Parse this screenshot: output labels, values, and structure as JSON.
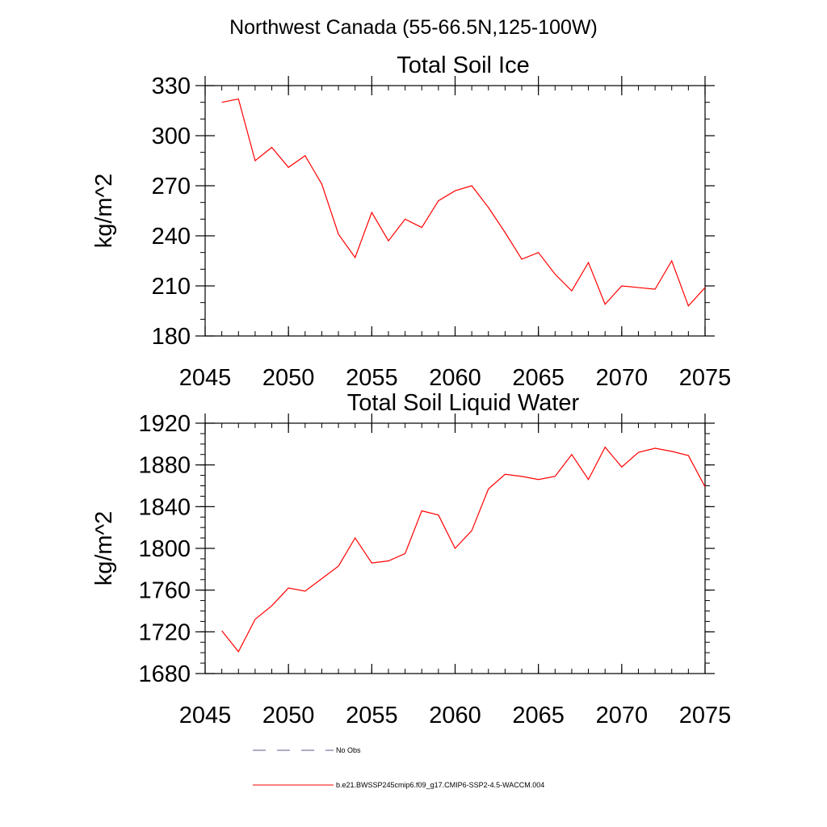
{
  "figure": {
    "title": "Northwest Canada (55-66.5N,125-100W)"
  },
  "chart_data": [
    {
      "type": "line",
      "title": "Total Soil Ice",
      "xlabel": "",
      "ylabel": "kg/m^2",
      "xlim": [
        2045,
        2075
      ],
      "ylim": [
        180,
        330
      ],
      "xticks": [
        2045,
        2050,
        2055,
        2060,
        2065,
        2070,
        2075
      ],
      "yticks": [
        180,
        210,
        240,
        270,
        300,
        330
      ],
      "x_minor_step": 1,
      "y_minor_step": 10,
      "grid": false,
      "series": [
        {
          "name": "b.e21.BWSSP245cmip6.f09_g17.CMIP6-SSP2-4.5-WACCM.004",
          "color": "#ff0000",
          "x": [
            2046,
            2047,
            2048,
            2049,
            2050,
            2051,
            2052,
            2053,
            2054,
            2055,
            2056,
            2057,
            2058,
            2059,
            2060,
            2061,
            2062,
            2063,
            2064,
            2065,
            2066,
            2067,
            2068,
            2069,
            2070,
            2071,
            2072,
            2073,
            2074,
            2075
          ],
          "y": [
            320,
            322,
            285,
            293,
            281,
            288,
            271,
            241,
            227,
            254,
            237,
            250,
            245,
            261,
            267,
            270,
            257,
            242,
            226,
            230,
            217,
            207,
            224,
            199,
            210,
            209,
            208,
            225,
            198,
            209
          ]
        }
      ]
    },
    {
      "type": "line",
      "title": "Total Soil Liquid Water",
      "xlabel": "",
      "ylabel": "kg/m^2",
      "xlim": [
        2045,
        2075
      ],
      "ylim": [
        1680,
        1920
      ],
      "xticks": [
        2045,
        2050,
        2055,
        2060,
        2065,
        2070,
        2075
      ],
      "yticks": [
        1680,
        1720,
        1760,
        1800,
        1840,
        1880,
        1920
      ],
      "x_minor_step": 1,
      "y_minor_step": 10,
      "grid": false,
      "series": [
        {
          "name": "b.e21.BWSSP245cmip6.f09_g17.CMIP6-SSP2-4.5-WACCM.004",
          "color": "#ff0000",
          "x": [
            2046,
            2047,
            2048,
            2049,
            2050,
            2051,
            2052,
            2053,
            2054,
            2055,
            2056,
            2057,
            2058,
            2059,
            2060,
            2061,
            2062,
            2063,
            2064,
            2065,
            2066,
            2067,
            2068,
            2069,
            2070,
            2071,
            2072,
            2073,
            2074,
            2075
          ],
          "y": [
            1721,
            1701,
            1732,
            1745,
            1762,
            1759,
            1771,
            1783,
            1810,
            1786,
            1788,
            1795,
            1836,
            1832,
            1800,
            1817,
            1857,
            1871,
            1869,
            1866,
            1869,
            1890,
            1866,
            1897,
            1878,
            1892,
            1896,
            1893,
            1889,
            1859
          ]
        }
      ]
    }
  ],
  "legend": {
    "items": [
      {
        "label": "No Obs",
        "style": "dashed",
        "color": "#5a5a8a"
      },
      {
        "label": "b.e21.BWSSP245cmip6.f09_g17.CMIP6-SSP2-4.5-WACCM.004",
        "style": "solid",
        "color": "#ff0000"
      }
    ]
  }
}
